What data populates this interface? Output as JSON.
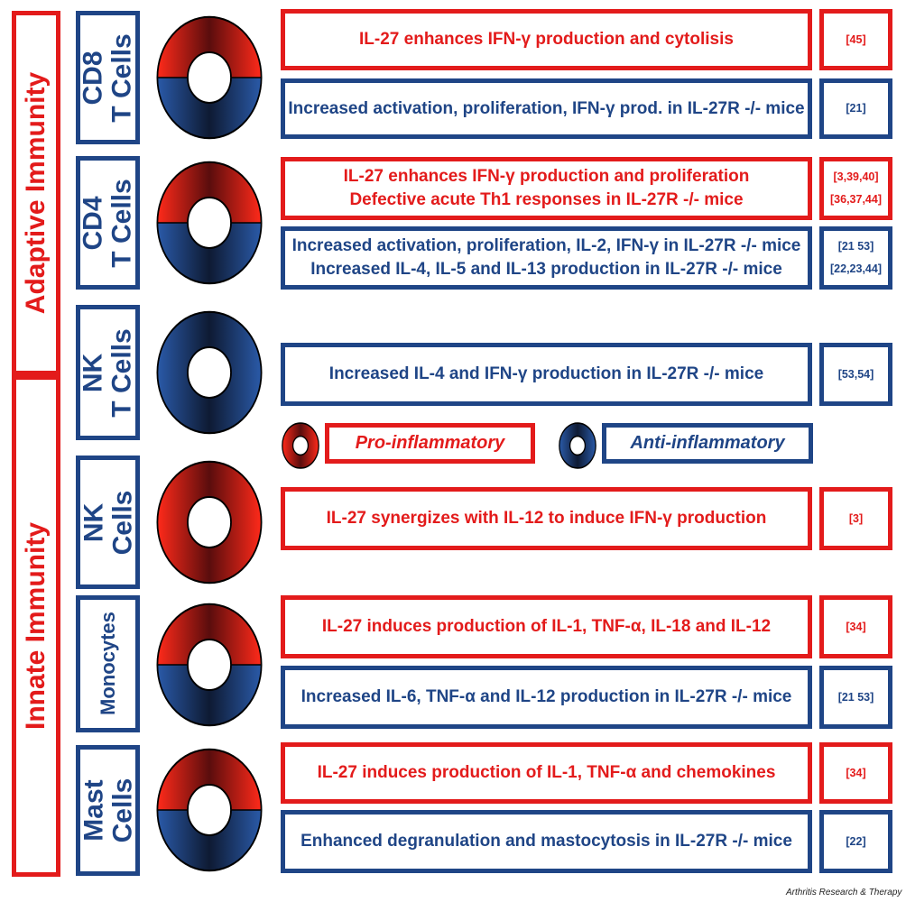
{
  "sections": {
    "adaptive": "Adaptive Immunity",
    "innate": "Innate Immunity"
  },
  "cells": {
    "cd8": [
      "CD8",
      "T Cells"
    ],
    "cd4": [
      "CD4",
      "T Cells"
    ],
    "nkt": [
      "NK",
      "T Cells"
    ],
    "nk": [
      "NK",
      "Cells"
    ],
    "mono": [
      "Monocytes"
    ],
    "mast": [
      "Mast",
      "Cells"
    ]
  },
  "rows": {
    "cd8_pro": {
      "lines": [
        "IL-27 enhances IFN-γ production and cytolisis"
      ],
      "refs": [
        "[45]"
      ]
    },
    "cd8_anti": {
      "lines": [
        "Increased activation, proliferation, IFN-γ prod. in IL-27R -/- mice"
      ],
      "refs": [
        "[21]"
      ]
    },
    "cd4_pro": {
      "lines": [
        "IL-27 enhances IFN-γ production and proliferation",
        "Defective acute Th1 responses in IL-27R -/- mice"
      ],
      "refs": [
        "[3,39,40]",
        "[36,37,44]"
      ]
    },
    "cd4_anti": {
      "lines": [
        "Increased activation, proliferation, IL-2, IFN-γ in IL-27R -/- mice",
        "Increased IL-4, IL-5 and IL-13 production in IL-27R -/- mice"
      ],
      "refs": [
        "[21 53]",
        "[22,23,44]"
      ]
    },
    "nkt_anti": {
      "lines": [
        "Increased IL-4 and IFN-γ production in IL-27R -/- mice"
      ],
      "refs": [
        "[53,54]"
      ]
    },
    "nk_pro": {
      "lines": [
        "IL-27 synergizes with IL-12 to induce IFN-γ production"
      ],
      "refs": [
        "[3]"
      ]
    },
    "mono_pro": {
      "lines": [
        "IL-27 induces production of IL-1, TNF-α, IL-18 and IL-12"
      ],
      "refs": [
        "[34]"
      ]
    },
    "mono_anti": {
      "lines": [
        "Increased IL-6, TNF-α and IL-12 production in IL-27R -/- mice"
      ],
      "refs": [
        "[21 53]"
      ]
    },
    "mast_pro": {
      "lines": [
        "IL-27 induces production of IL-1, TNF-α and chemokines"
      ],
      "refs": [
        "[34]"
      ]
    },
    "mast_anti": {
      "lines": [
        "Enhanced degranulation and mastocytosis in IL-27R -/- mice"
      ],
      "refs": [
        "[22]"
      ]
    }
  },
  "legend": {
    "pro": "Pro-inflammatory",
    "anti": "Anti-inflammatory"
  },
  "credit": "Arthritis Research & Therapy",
  "colors": {
    "pro": "#e31b1b",
    "anti": "#1f4586"
  }
}
